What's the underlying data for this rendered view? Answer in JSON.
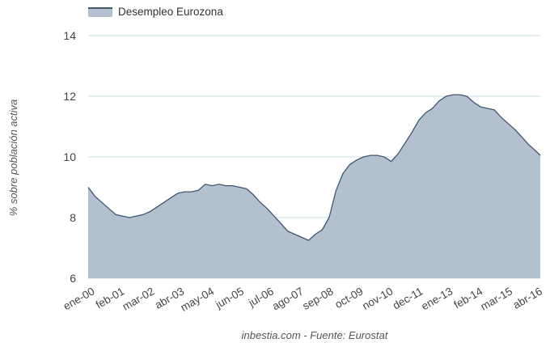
{
  "chart_data": {
    "type": "area",
    "ylabel": "% sobre población activa",
    "caption": "inbestia.com - Fuente: Eurostat",
    "ylim": [
      6,
      14
    ],
    "y_ticks": [
      6,
      8,
      10,
      12,
      14
    ],
    "x_tick_labels": [
      "ene-00",
      "feb-01",
      "mar-02",
      "abr-03",
      "may-04",
      "jun-05",
      "jul-06",
      "ago-07",
      "sep-08",
      "oct-09",
      "nov-10",
      "dec-11",
      "ene-13",
      "feb-14",
      "mar-15",
      "abr-16"
    ],
    "grid": true,
    "legend_position": "top-left",
    "colors": {
      "fill": "#b3c1cf",
      "line": "#3f5670",
      "grid": "#c9dde3"
    },
    "series": [
      {
        "name": "Desempleo Eurozona",
        "x": [
          "2000-01",
          "2000-04",
          "2000-07",
          "2000-10",
          "2001-01",
          "2001-04",
          "2001-07",
          "2001-10",
          "2002-01",
          "2002-04",
          "2002-07",
          "2002-10",
          "2003-01",
          "2003-04",
          "2003-07",
          "2003-10",
          "2004-01",
          "2004-04",
          "2004-07",
          "2004-10",
          "2005-01",
          "2005-04",
          "2005-07",
          "2005-10",
          "2006-01",
          "2006-04",
          "2006-07",
          "2006-10",
          "2007-01",
          "2007-04",
          "2007-07",
          "2007-10",
          "2008-01",
          "2008-04",
          "2008-07",
          "2008-10",
          "2009-01",
          "2009-04",
          "2009-07",
          "2009-10",
          "2010-01",
          "2010-04",
          "2010-07",
          "2010-10",
          "2011-01",
          "2011-04",
          "2011-07",
          "2011-10",
          "2012-01",
          "2012-04",
          "2012-07",
          "2012-10",
          "2013-01",
          "2013-04",
          "2013-07",
          "2013-10",
          "2014-01",
          "2014-04",
          "2014-07",
          "2014-10",
          "2015-01",
          "2015-04",
          "2015-07",
          "2015-10",
          "2016-01",
          "2016-04",
          "2016-06"
        ],
        "values": [
          9.0,
          8.7,
          8.5,
          8.3,
          8.1,
          8.05,
          8.0,
          8.05,
          8.1,
          8.2,
          8.35,
          8.5,
          8.65,
          8.8,
          8.85,
          8.85,
          8.9,
          9.1,
          9.05,
          9.1,
          9.05,
          9.05,
          9.0,
          8.95,
          8.75,
          8.5,
          8.3,
          8.05,
          7.8,
          7.55,
          7.45,
          7.35,
          7.25,
          7.45,
          7.6,
          8.0,
          8.9,
          9.45,
          9.75,
          9.9,
          10.0,
          10.05,
          10.05,
          10.0,
          9.85,
          10.1,
          10.45,
          10.8,
          11.2,
          11.45,
          11.6,
          11.85,
          12.0,
          12.05,
          12.05,
          12.0,
          11.8,
          11.65,
          11.6,
          11.55,
          11.3,
          11.1,
          10.9,
          10.65,
          10.4,
          10.2,
          10.05
        ]
      }
    ]
  }
}
